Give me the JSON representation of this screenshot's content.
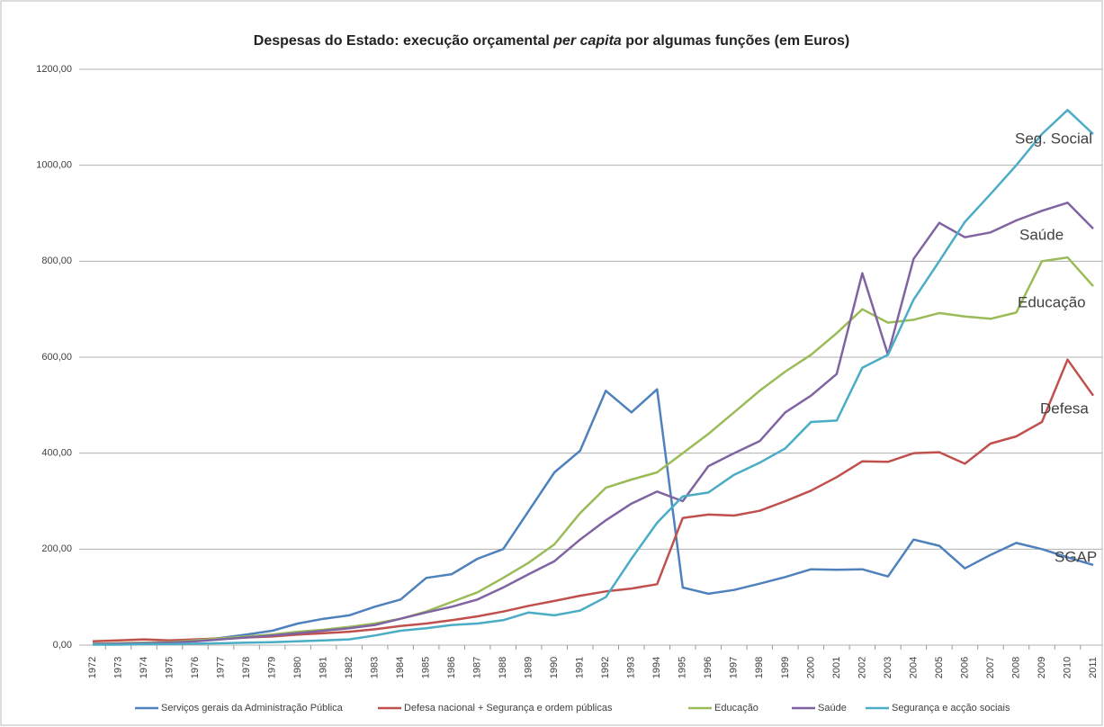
{
  "chart_data": {
    "type": "line",
    "title": [
      "Despesas do Estado: execução orçamental ",
      "per capita",
      " por algumas funções  (em Euros)"
    ],
    "categories": [
      "1972",
      "1973",
      "1974",
      "1975",
      "1976",
      "1977",
      "1978",
      "1979",
      "1980",
      "1981",
      "1982",
      "1983",
      "1984",
      "1985",
      "1986",
      "1987",
      "1988",
      "1989",
      "1990",
      "1991",
      "1992",
      "1993",
      "1994",
      "1995",
      "1996",
      "1997",
      "1998",
      "1999",
      "2000",
      "2001",
      "2002",
      "2003",
      "2004",
      "2005",
      "2006",
      "2007",
      "2008",
      "2009",
      "2010",
      "2011"
    ],
    "series": [
      {
        "name": "Serviços gerais da Administração Pública",
        "color": "#4f81bd",
        "values": [
          2,
          3,
          4,
          5,
          10,
          15,
          22,
          30,
          45,
          55,
          62,
          80,
          95,
          140,
          148,
          180,
          200,
          280,
          360,
          405,
          530,
          485,
          533,
          120,
          107,
          115,
          128,
          142,
          158,
          157,
          158,
          143,
          220,
          207,
          160,
          188,
          213,
          200,
          183,
          167
        ]
      },
      {
        "name": "Defesa nacional + Segurança e ordem públicas",
        "color": "#c0504d",
        "values": [
          8,
          10,
          12,
          10,
          12,
          14,
          16,
          18,
          22,
          25,
          28,
          33,
          40,
          45,
          52,
          60,
          70,
          82,
          92,
          103,
          112,
          118,
          127,
          265,
          272,
          270,
          280,
          300,
          322,
          350,
          383,
          382,
          400,
          402,
          378,
          420,
          435,
          465,
          595,
          520
        ]
      },
      {
        "name": "Educação",
        "color": "#9bbb59",
        "values": [
          3,
          4,
          5,
          6,
          10,
          14,
          18,
          22,
          28,
          32,
          38,
          45,
          55,
          70,
          90,
          110,
          140,
          172,
          210,
          275,
          328,
          345,
          360,
          400,
          440,
          485,
          530,
          570,
          605,
          650,
          700,
          672,
          678,
          692,
          685,
          680,
          693,
          800,
          808,
          748
        ]
      },
      {
        "name": "Saúde",
        "color": "#8064a2",
        "values": [
          2,
          3,
          4,
          5,
          8,
          12,
          16,
          20,
          25,
          30,
          35,
          42,
          55,
          68,
          80,
          95,
          120,
          148,
          175,
          220,
          260,
          295,
          320,
          300,
          373,
          400,
          425,
          485,
          520,
          565,
          775,
          605,
          805,
          880,
          850,
          860,
          885,
          905,
          922,
          868
        ]
      },
      {
        "name": "Segurança e acção sociais",
        "color": "#4bacc6",
        "values": [
          1,
          1,
          2,
          2,
          3,
          4,
          5,
          6,
          8,
          10,
          12,
          20,
          30,
          35,
          42,
          45,
          52,
          68,
          62,
          72,
          100,
          180,
          255,
          310,
          318,
          355,
          380,
          410,
          465,
          468,
          578,
          605,
          720,
          800,
          882,
          940,
          1000,
          1065,
          1115,
          1065
        ]
      }
    ],
    "annotations": [
      {
        "text": "Seg. Social",
        "color": "#4bacc6"
      },
      {
        "text": "Saúde",
        "color": "#8064a2"
      },
      {
        "text": "Educação",
        "color": "#9bbb59"
      },
      {
        "text": "Defesa",
        "color": "#c0504d"
      },
      {
        "text": "SGAP",
        "color": "#4f81bd"
      }
    ],
    "ylim": [
      0,
      1200
    ],
    "yticks": [
      {
        "value": 0,
        "label": "0,00"
      },
      {
        "value": 200,
        "label": "200,00"
      },
      {
        "value": 400,
        "label": "400,00"
      },
      {
        "value": 600,
        "label": "600,00"
      },
      {
        "value": 800,
        "label": "800,00"
      },
      {
        "value": 1000,
        "label": "1000,00"
      },
      {
        "value": 1200,
        "label": "1200,00"
      }
    ],
    "grid": true,
    "legend": "bottom"
  }
}
